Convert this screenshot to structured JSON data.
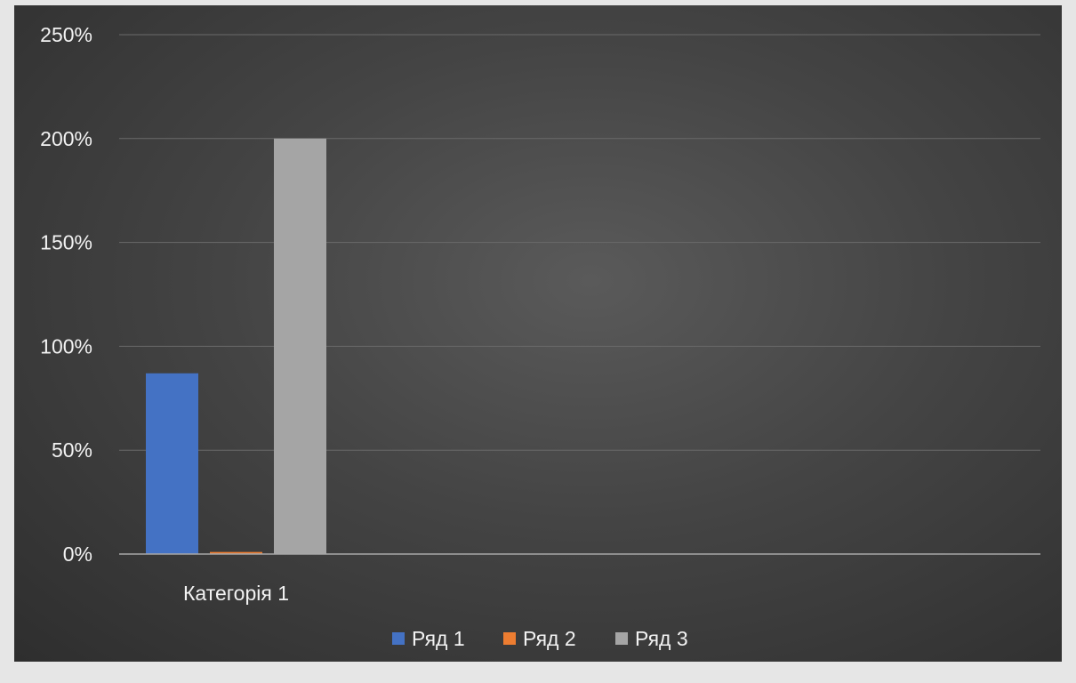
{
  "chart_data": {
    "type": "bar",
    "categories": [
      "Категорія 1"
    ],
    "series": [
      {
        "name": "Ряд 1",
        "values": [
          0.87
        ],
        "color": "#4472c4"
      },
      {
        "name": "Ряд 2",
        "values": [
          0.01
        ],
        "color": "#ed7d31"
      },
      {
        "name": "Ряд 3",
        "values": [
          2.0
        ],
        "color": "#a5a5a5"
      }
    ],
    "y_ticks": [
      "0%",
      "50%",
      "100%",
      "150%",
      "200%",
      "250%"
    ],
    "ylim": [
      0,
      2.5
    ],
    "grid": true,
    "legend_position": "bottom",
    "title": "",
    "xlabel": "",
    "ylabel": ""
  }
}
